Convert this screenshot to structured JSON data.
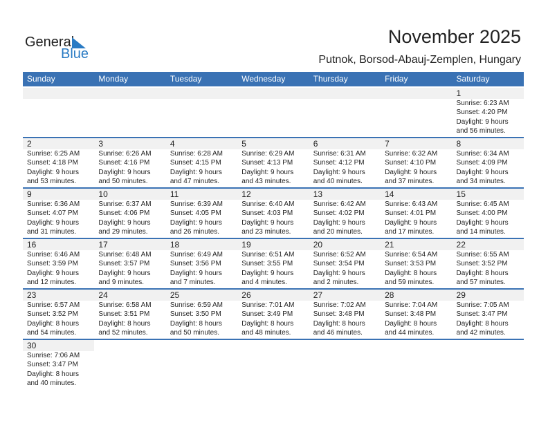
{
  "logo": {
    "text1": "General",
    "text2": "Blue"
  },
  "title": "November 2025",
  "subtitle": "Putnok, Borsod-Abauj-Zemplen, Hungary",
  "colors": {
    "header": "#3a72b4",
    "date_band": "#f1f1f1",
    "logo_blue": "#2a7bc4"
  },
  "weekdays": [
    "Sunday",
    "Monday",
    "Tuesday",
    "Wednesday",
    "Thursday",
    "Friday",
    "Saturday"
  ],
  "weeks": [
    [
      null,
      null,
      null,
      null,
      null,
      null,
      {
        "day": "1",
        "sunrise": "Sunrise: 6:23 AM",
        "sunset": "Sunset: 4:20 PM",
        "daylight1": "Daylight: 9 hours",
        "daylight2": "and 56 minutes."
      }
    ],
    [
      {
        "day": "2",
        "sunrise": "Sunrise: 6:25 AM",
        "sunset": "Sunset: 4:18 PM",
        "daylight1": "Daylight: 9 hours",
        "daylight2": "and 53 minutes."
      },
      {
        "day": "3",
        "sunrise": "Sunrise: 6:26 AM",
        "sunset": "Sunset: 4:16 PM",
        "daylight1": "Daylight: 9 hours",
        "daylight2": "and 50 minutes."
      },
      {
        "day": "4",
        "sunrise": "Sunrise: 6:28 AM",
        "sunset": "Sunset: 4:15 PM",
        "daylight1": "Daylight: 9 hours",
        "daylight2": "and 47 minutes."
      },
      {
        "day": "5",
        "sunrise": "Sunrise: 6:29 AM",
        "sunset": "Sunset: 4:13 PM",
        "daylight1": "Daylight: 9 hours",
        "daylight2": "and 43 minutes."
      },
      {
        "day": "6",
        "sunrise": "Sunrise: 6:31 AM",
        "sunset": "Sunset: 4:12 PM",
        "daylight1": "Daylight: 9 hours",
        "daylight2": "and 40 minutes."
      },
      {
        "day": "7",
        "sunrise": "Sunrise: 6:32 AM",
        "sunset": "Sunset: 4:10 PM",
        "daylight1": "Daylight: 9 hours",
        "daylight2": "and 37 minutes."
      },
      {
        "day": "8",
        "sunrise": "Sunrise: 6:34 AM",
        "sunset": "Sunset: 4:09 PM",
        "daylight1": "Daylight: 9 hours",
        "daylight2": "and 34 minutes."
      }
    ],
    [
      {
        "day": "9",
        "sunrise": "Sunrise: 6:36 AM",
        "sunset": "Sunset: 4:07 PM",
        "daylight1": "Daylight: 9 hours",
        "daylight2": "and 31 minutes."
      },
      {
        "day": "10",
        "sunrise": "Sunrise: 6:37 AM",
        "sunset": "Sunset: 4:06 PM",
        "daylight1": "Daylight: 9 hours",
        "daylight2": "and 29 minutes."
      },
      {
        "day": "11",
        "sunrise": "Sunrise: 6:39 AM",
        "sunset": "Sunset: 4:05 PM",
        "daylight1": "Daylight: 9 hours",
        "daylight2": "and 26 minutes."
      },
      {
        "day": "12",
        "sunrise": "Sunrise: 6:40 AM",
        "sunset": "Sunset: 4:03 PM",
        "daylight1": "Daylight: 9 hours",
        "daylight2": "and 23 minutes."
      },
      {
        "day": "13",
        "sunrise": "Sunrise: 6:42 AM",
        "sunset": "Sunset: 4:02 PM",
        "daylight1": "Daylight: 9 hours",
        "daylight2": "and 20 minutes."
      },
      {
        "day": "14",
        "sunrise": "Sunrise: 6:43 AM",
        "sunset": "Sunset: 4:01 PM",
        "daylight1": "Daylight: 9 hours",
        "daylight2": "and 17 minutes."
      },
      {
        "day": "15",
        "sunrise": "Sunrise: 6:45 AM",
        "sunset": "Sunset: 4:00 PM",
        "daylight1": "Daylight: 9 hours",
        "daylight2": "and 14 minutes."
      }
    ],
    [
      {
        "day": "16",
        "sunrise": "Sunrise: 6:46 AM",
        "sunset": "Sunset: 3:59 PM",
        "daylight1": "Daylight: 9 hours",
        "daylight2": "and 12 minutes."
      },
      {
        "day": "17",
        "sunrise": "Sunrise: 6:48 AM",
        "sunset": "Sunset: 3:57 PM",
        "daylight1": "Daylight: 9 hours",
        "daylight2": "and 9 minutes."
      },
      {
        "day": "18",
        "sunrise": "Sunrise: 6:49 AM",
        "sunset": "Sunset: 3:56 PM",
        "daylight1": "Daylight: 9 hours",
        "daylight2": "and 7 minutes."
      },
      {
        "day": "19",
        "sunrise": "Sunrise: 6:51 AM",
        "sunset": "Sunset: 3:55 PM",
        "daylight1": "Daylight: 9 hours",
        "daylight2": "and 4 minutes."
      },
      {
        "day": "20",
        "sunrise": "Sunrise: 6:52 AM",
        "sunset": "Sunset: 3:54 PM",
        "daylight1": "Daylight: 9 hours",
        "daylight2": "and 2 minutes."
      },
      {
        "day": "21",
        "sunrise": "Sunrise: 6:54 AM",
        "sunset": "Sunset: 3:53 PM",
        "daylight1": "Daylight: 8 hours",
        "daylight2": "and 59 minutes."
      },
      {
        "day": "22",
        "sunrise": "Sunrise: 6:55 AM",
        "sunset": "Sunset: 3:52 PM",
        "daylight1": "Daylight: 8 hours",
        "daylight2": "and 57 minutes."
      }
    ],
    [
      {
        "day": "23",
        "sunrise": "Sunrise: 6:57 AM",
        "sunset": "Sunset: 3:52 PM",
        "daylight1": "Daylight: 8 hours",
        "daylight2": "and 54 minutes."
      },
      {
        "day": "24",
        "sunrise": "Sunrise: 6:58 AM",
        "sunset": "Sunset: 3:51 PM",
        "daylight1": "Daylight: 8 hours",
        "daylight2": "and 52 minutes."
      },
      {
        "day": "25",
        "sunrise": "Sunrise: 6:59 AM",
        "sunset": "Sunset: 3:50 PM",
        "daylight1": "Daylight: 8 hours",
        "daylight2": "and 50 minutes."
      },
      {
        "day": "26",
        "sunrise": "Sunrise: 7:01 AM",
        "sunset": "Sunset: 3:49 PM",
        "daylight1": "Daylight: 8 hours",
        "daylight2": "and 48 minutes."
      },
      {
        "day": "27",
        "sunrise": "Sunrise: 7:02 AM",
        "sunset": "Sunset: 3:48 PM",
        "daylight1": "Daylight: 8 hours",
        "daylight2": "and 46 minutes."
      },
      {
        "day": "28",
        "sunrise": "Sunrise: 7:04 AM",
        "sunset": "Sunset: 3:48 PM",
        "daylight1": "Daylight: 8 hours",
        "daylight2": "and 44 minutes."
      },
      {
        "day": "29",
        "sunrise": "Sunrise: 7:05 AM",
        "sunset": "Sunset: 3:47 PM",
        "daylight1": "Daylight: 8 hours",
        "daylight2": "and 42 minutes."
      }
    ],
    [
      {
        "day": "30",
        "sunrise": "Sunrise: 7:06 AM",
        "sunset": "Sunset: 3:47 PM",
        "daylight1": "Daylight: 8 hours",
        "daylight2": "and 40 minutes."
      },
      null,
      null,
      null,
      null,
      null,
      null
    ]
  ]
}
